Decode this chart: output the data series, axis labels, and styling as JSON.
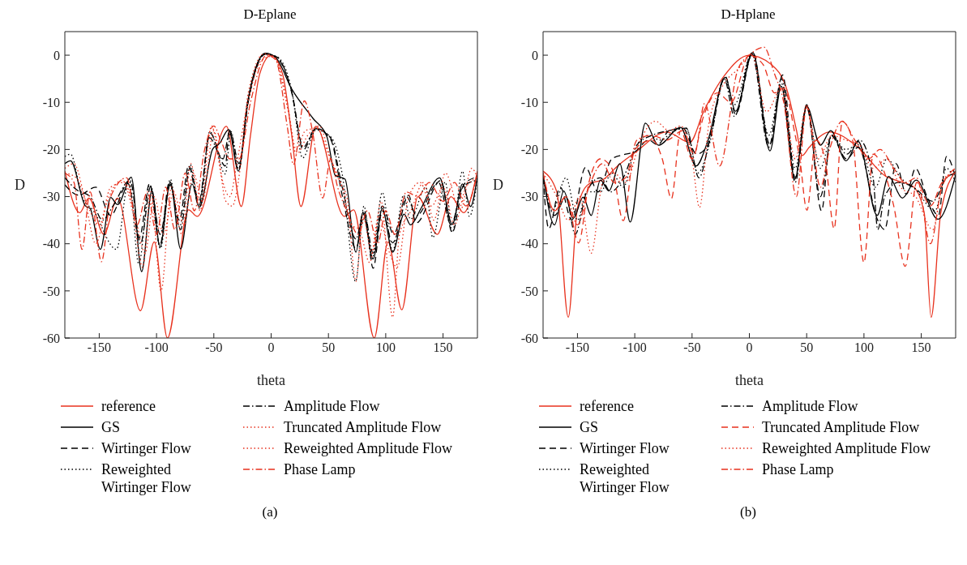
{
  "chart_data": [
    {
      "type": "line",
      "title": "D-Eplane",
      "xlabel": "theta",
      "ylabel": "D",
      "xlim": [
        -180,
        180
      ],
      "xticks": [
        -150,
        -100,
        -50,
        0,
        50,
        100,
        150
      ],
      "ylim": [
        -60,
        5
      ],
      "yticks": [
        -60,
        -50,
        -40,
        -30,
        -20,
        -10,
        0
      ],
      "legend": "bottom",
      "annotations": [
        "(a)"
      ],
      "series": [
        {
          "name": "reference",
          "color": "#e8321e",
          "line_style": "solid",
          "x": [
            -180,
            -167,
            -159,
            -146,
            -134,
            -114,
            -102,
            -90.5,
            -72,
            -64.5,
            -39,
            -26,
            -18,
            -10,
            0,
            10,
            18,
            26,
            39,
            64,
            72,
            90,
            102,
            114,
            128,
            145,
            157,
            168,
            180
          ],
          "values": [
            -24.6,
            -33.4,
            -30.3,
            -38,
            -30.3,
            -54.2,
            -39.6,
            -60,
            -32.8,
            -34.2,
            -15.1,
            -32.1,
            -17,
            -4,
            0,
            -4,
            -17,
            -32.1,
            -15.1,
            -34.2,
            -32.8,
            -60,
            -39.6,
            -54,
            -30,
            -38,
            -30,
            -33.4,
            -24.6
          ]
        },
        {
          "name": "GS",
          "color": "#000000",
          "line_style": "solid",
          "x": [
            -180,
            -175,
            -162,
            -158,
            -149,
            -140,
            -134,
            -122,
            -113,
            -104,
            -97,
            -88,
            -79,
            -69,
            -62.5,
            -51,
            -45,
            -37,
            -28.5,
            -21,
            -5,
            4,
            18,
            36.5,
            48.7,
            56,
            64.5,
            74,
            80,
            89,
            97,
            106,
            116,
            121.6,
            131,
            147,
            158,
            167,
            174,
            180
          ],
          "values": [
            -23,
            -22.4,
            -32,
            -32.5,
            -41.2,
            -30.2,
            -31.7,
            -25.9,
            -45.9,
            -28.7,
            -40.7,
            -26.9,
            -41.1,
            -27.3,
            -32.2,
            -19.9,
            -18.7,
            -15.8,
            -24.6,
            -10.6,
            0.4,
            -0.5,
            -7.2,
            -13.4,
            -17.3,
            -25.5,
            -26.3,
            -41.8,
            -33.4,
            -43.2,
            -32.5,
            -41.8,
            -33.7,
            -36,
            -32.4,
            -26,
            -35.9,
            -27.3,
            -32.1,
            -25.5
          ]
        },
        {
          "name": "Wirtinger Flow",
          "color": "#000000",
          "line_style": "dashed",
          "x": [
            -180,
            -168,
            -153,
            -140,
            -125,
            -115,
            -106,
            -97,
            -89,
            -80,
            -72,
            -63,
            -53.5,
            -40,
            -36.5,
            -28.5,
            -20,
            -5,
            5,
            18,
            28,
            39,
            52,
            62,
            74,
            81.5,
            89,
            97,
            106,
            120,
            126.5,
            148,
            158,
            168,
            180
          ],
          "values": [
            -27.5,
            -29.7,
            -28,
            -34,
            -27.2,
            -38.7,
            -27.2,
            -40.4,
            -27,
            -35,
            -23.4,
            -32,
            -16.5,
            -23.5,
            -15.9,
            -24.4,
            -9.5,
            0.3,
            -0.5,
            -8,
            -20.1,
            -15.6,
            -17.9,
            -29.7,
            -41,
            -33.6,
            -45.2,
            -33,
            -39.8,
            -29.7,
            -35.6,
            -26.6,
            -37.6,
            -27.5,
            -25.8
          ]
        },
        {
          "name": "Reweighted Wirtinger Flow",
          "color": "#000000",
          "line_style": "dotted",
          "x": [
            -180,
            -175,
            -165,
            -155,
            -135,
            -124,
            -115.5,
            -106,
            -96.6,
            -88,
            -80,
            -70.6,
            -62.5,
            -53.5,
            -40,
            -35,
            -28.5,
            -20,
            -5,
            5,
            18,
            27.5,
            39,
            52,
            62,
            73.7,
            81,
            88,
            97,
            106,
            115.6,
            121.6,
            135,
            141,
            152,
            158,
            167,
            173,
            180
          ],
          "values": [
            -21.5,
            -21,
            -30,
            -33,
            -41.2,
            -26.3,
            -44.3,
            -27.5,
            -41,
            -26.3,
            -36.5,
            -23.2,
            -32.5,
            -16.2,
            -25.2,
            -16.2,
            -24.1,
            -9.8,
            0.2,
            -0.3,
            -7.5,
            -21.8,
            -15.9,
            -17.3,
            -25.2,
            -48,
            -32,
            -43.2,
            -29.1,
            -41.5,
            -29.7,
            -34.8,
            -28,
            -38.7,
            -26.9,
            -37.6,
            -24.6,
            -34.2,
            -26.1
          ]
        },
        {
          "name": "Amplitude Flow",
          "color": "#000000",
          "line_style": "dashdot",
          "x": [
            -180,
            -170,
            -158,
            -147,
            -138,
            -123,
            -114,
            -105,
            -97,
            -88,
            -79,
            -71,
            -63,
            -54,
            -42,
            -36,
            -28,
            -20,
            -5,
            5,
            18,
            28,
            39,
            52,
            62,
            74,
            81,
            89,
            97,
            107,
            118,
            127,
            146,
            157,
            167,
            180
          ],
          "values": [
            -26,
            -28.5,
            -30,
            -35,
            -32,
            -26.5,
            -40,
            -27.8,
            -38,
            -27.5,
            -37,
            -24,
            -31,
            -17.5,
            -22,
            -16,
            -23,
            -10,
            0.2,
            -0.4,
            -7.8,
            -19.5,
            -15.5,
            -17.6,
            -28,
            -39,
            -33,
            -42,
            -32,
            -38,
            -30,
            -34,
            -27,
            -36,
            -28,
            -26.5
          ]
        },
        {
          "name": "Truncated Amplitude Flow",
          "color": "#e8321e",
          "line_style": "dotted",
          "x": [
            -180,
            -172,
            -163,
            -153,
            -143,
            -130,
            -121,
            -112,
            -105,
            -96,
            -87,
            -78,
            -70,
            -62,
            -52,
            -44,
            -40,
            -34,
            -27,
            -20,
            -6,
            3,
            15,
            22,
            30,
            40,
            50,
            60,
            66,
            74,
            80,
            88,
            96,
            106,
            112,
            122,
            133,
            142,
            152,
            165,
            175,
            180
          ],
          "values": [
            -24,
            -23,
            -30,
            -40,
            -31,
            -26.5,
            -33,
            -45,
            -29,
            -50,
            -28,
            -38,
            -23,
            -33,
            -15,
            -25,
            -30.8,
            -32,
            -24,
            -8,
            0.3,
            -0.5,
            -12,
            -20,
            -16,
            -15.5,
            -21,
            -27,
            -30,
            -48,
            -34,
            -42,
            -31,
            -55.6,
            -38,
            -33,
            -27,
            -35,
            -25,
            -33,
            -24,
            -26
          ]
        },
        {
          "name": "Reweighted Amplitude Flow",
          "color": "#e8321e",
          "line_style": "dotted",
          "x": [
            -180,
            -170,
            -160,
            -150,
            -140,
            -128,
            -118,
            -110,
            -102,
            -94,
            -85,
            -76,
            -68,
            -60,
            -50,
            -42,
            -36,
            -30,
            -22,
            -8,
            2,
            14,
            22,
            32,
            42,
            52,
            62,
            70,
            77,
            86,
            94,
            102,
            110,
            120,
            130,
            140,
            150,
            160,
            170,
            180
          ],
          "values": [
            -25,
            -26,
            -32,
            -36,
            -28,
            -27,
            -35,
            -42,
            -30,
            -38,
            -29,
            -36,
            -25,
            -31,
            -16,
            -27,
            -30,
            -23,
            -12,
            -1,
            -0.2,
            -10,
            -21,
            -17,
            -15,
            -22,
            -28,
            -36,
            -37,
            -44,
            -34,
            -41,
            -45,
            -30,
            -27,
            -32,
            -28,
            -36,
            -28,
            -26
          ]
        },
        {
          "name": "Phase Lamp",
          "color": "#e8321e",
          "line_style": "dashdot",
          "x": [
            -180,
            -172,
            -165,
            -158,
            -148,
            -140,
            -126,
            -117,
            -108,
            -100,
            -92,
            -84,
            -75,
            -67,
            -58,
            -50,
            -44,
            -36,
            -28,
            -18,
            -4,
            4,
            14,
            19.5,
            29,
            36,
            45,
            52,
            58,
            66,
            76,
            84,
            93,
            100,
            108,
            118,
            128,
            138,
            150,
            160,
            170,
            180
          ],
          "values": [
            -25,
            -27,
            -41.2,
            -29,
            -43.8,
            -30,
            -26,
            -36,
            -29,
            -38,
            -28,
            -37,
            -25,
            -33,
            -20,
            -15,
            -18,
            -22,
            -22,
            -10,
            0,
            -1,
            -15,
            -23.2,
            -9.7,
            -16,
            -30.3,
            -22,
            -28,
            -33,
            -38,
            -33,
            -40,
            -33,
            -38,
            -29,
            -30,
            -27,
            -31,
            -27,
            -32,
            -25
          ]
        }
      ]
    },
    {
      "type": "line",
      "title": "D-Hplane",
      "xlabel": "theta",
      "ylabel": "D",
      "xlim": [
        -180,
        180
      ],
      "xticks": [
        -150,
        -100,
        -50,
        0,
        50,
        100,
        150
      ],
      "ylim": [
        -60,
        5
      ],
      "yticks": [
        -60,
        -50,
        -40,
        -30,
        -20,
        -10,
        0
      ],
      "legend": "bottom",
      "annotations": [
        "(b)"
      ],
      "series": [
        {
          "name": "reference",
          "color": "#e8321e",
          "line_style": "solid",
          "x": [
            -180,
            -168,
            -158,
            -150,
            -140.5,
            -127,
            -115,
            -100,
            -72,
            -52,
            -40,
            -22,
            0,
            18.7,
            33,
            41,
            46,
            52,
            70,
            95,
            119,
            130,
            143,
            152.6,
            158.6,
            167,
            180
          ],
          "values": [
            -24.6,
            -29,
            -55.6,
            -32.4,
            -27.4,
            -26.3,
            -23.5,
            -20.7,
            -16.3,
            -18.5,
            -12,
            -4.4,
            0,
            -1.9,
            -7.5,
            -15.8,
            -21.3,
            -19.6,
            -16.3,
            -19.6,
            -25.7,
            -26.7,
            -27.9,
            -33.5,
            -55.6,
            -33.5,
            -24.6
          ]
        },
        {
          "name": "GS",
          "color": "#000000",
          "line_style": "solid",
          "x": [
            -180,
            -170,
            -162,
            -153.6,
            -145,
            -138,
            -130,
            -122.5,
            -113,
            -104,
            -90.7,
            -79.4,
            -60,
            -46.6,
            -36,
            -21,
            -12,
            3,
            18,
            27.8,
            39.7,
            50,
            62,
            71,
            84.4,
            95,
            111.5,
            121.5,
            133.5,
            145.5,
            164.6,
            180
          ],
          "values": [
            -25.2,
            -36,
            -28.8,
            -34.6,
            -30.1,
            -34,
            -26.5,
            -28.8,
            -23,
            -35.4,
            -14.4,
            -19.1,
            -15.3,
            -23.5,
            -18,
            -4.7,
            -11.9,
            0.6,
            -20.3,
            -6.6,
            -26.3,
            -10.8,
            -19.1,
            -16,
            -22.4,
            -18.3,
            -34,
            -25.7,
            -30.3,
            -26.5,
            -34.8,
            -25.4
          ]
        },
        {
          "name": "Wirtinger Flow",
          "color": "#000000",
          "line_style": "dashed",
          "x": [
            -180,
            -175,
            -165,
            -155,
            -143,
            -132,
            -120,
            -108,
            -100,
            -88,
            -80,
            -70,
            -58,
            -46,
            -36,
            -21,
            -12,
            3,
            18,
            29,
            40,
            50,
            63,
            71,
            85,
            95,
            112,
            118,
            128,
            137,
            145,
            155,
            165,
            172,
            180
          ],
          "values": [
            -26,
            -36.8,
            -28,
            -35,
            -23.8,
            -29,
            -22,
            -21,
            -20.5,
            -18,
            -19,
            -16,
            -15.5,
            -21,
            -19,
            -4.5,
            -12.5,
            0.5,
            -19,
            -4.2,
            -26,
            -10.5,
            -33,
            -17,
            -22,
            -19.5,
            -35,
            -37,
            -23,
            -29.5,
            -24,
            -30,
            -34,
            -21.5,
            -26
          ]
        },
        {
          "name": "Reweighted Wirtinger Flow",
          "color": "#000000",
          "line_style": "dotted",
          "x": [
            -180,
            -172,
            -160,
            -150,
            -142,
            -130,
            -120,
            -110,
            -100,
            -88,
            -78,
            -65,
            -55,
            -45,
            -35,
            -22,
            -13,
            2,
            17,
            28,
            40,
            50,
            62,
            72,
            84,
            96,
            110,
            120,
            132,
            145,
            162,
            172,
            180
          ],
          "values": [
            -26,
            -33,
            -26,
            -35,
            -29,
            -29,
            -25,
            -28,
            -20,
            -17,
            -18,
            -16,
            -15.5,
            -25,
            -19,
            -5,
            -10.5,
            0.3,
            -17,
            -6,
            -24,
            -11,
            -24,
            -17,
            -20,
            -19,
            -28,
            -22,
            -26,
            -28.5,
            -33,
            -24,
            -27
          ]
        },
        {
          "name": "Amplitude Flow",
          "color": "#000000",
          "line_style": "dashdot",
          "x": [
            -180,
            -170,
            -160,
            -152,
            -142,
            -130,
            -121,
            -110,
            -98,
            -85,
            -70,
            -55,
            -44,
            -34,
            -22,
            -13,
            2,
            17,
            28,
            40,
            50,
            62,
            72,
            85,
            96,
            108,
            112,
            118,
            130,
            143,
            160,
            172,
            180
          ],
          "values": [
            -26,
            -34,
            -30,
            -38,
            -29,
            -26,
            -29,
            -26,
            -19,
            -17,
            -16,
            -15.5,
            -26,
            -17,
            -5,
            -13,
            0.4,
            -19.5,
            -5,
            -27,
            -11,
            -30,
            -17,
            -21,
            -18,
            -26,
            -37,
            -30,
            -27,
            -28,
            -31,
            -26,
            -25
          ]
        },
        {
          "name": "Truncated Amplitude Flow",
          "color": "#e8321e",
          "line_style": "dashed",
          "x": [
            -180,
            -170,
            -160,
            -149,
            -140,
            -130,
            -120,
            -110,
            -100,
            -85,
            -76,
            -68,
            -60,
            -50,
            -40,
            -28,
            -16,
            0,
            12,
            22,
            30,
            40,
            44,
            50.2,
            58,
            66,
            74,
            81,
            90,
            100,
            108,
            118,
            126,
            136,
            146,
            158,
            168,
            180
          ],
          "values": [
            -25,
            -33,
            -30,
            -39.8,
            -27,
            -22,
            -24,
            -35.1,
            -20,
            -18,
            -22,
            -30.4,
            -16,
            -22,
            -13,
            -8,
            -10,
            0,
            -2,
            -8,
            -7,
            -17,
            -22,
            -32.9,
            -18,
            -22,
            -36.8,
            -14.1,
            -18,
            -44,
            -21,
            -25,
            -32,
            -44.8,
            -27,
            -32,
            -27,
            -25
          ]
        },
        {
          "name": "Reweighted Amplitude Flow",
          "color": "#e8321e",
          "line_style": "dotted",
          "x": [
            -180,
            -168,
            -158,
            -148,
            -138,
            -128,
            -118,
            -108,
            -95,
            -82,
            -70,
            -60,
            -50,
            -43.5,
            -35,
            -22,
            -10,
            2,
            15,
            28,
            40,
            50,
            60,
            72,
            84,
            96,
            108,
            120,
            132,
            145,
            160,
            170,
            180
          ],
          "values": [
            -25,
            -30,
            -35,
            -30,
            -42,
            -27,
            -25,
            -27,
            -18,
            -14,
            -16,
            -15,
            -22,
            -32.3,
            -14,
            -6,
            -3,
            0.2,
            -12,
            -7,
            -22,
            -10.5,
            -22,
            -17,
            -18,
            -19,
            -24,
            -22,
            -28,
            -30,
            -37,
            -26,
            -25
          ]
        },
        {
          "name": "Phase Lamp",
          "color": "#e8321e",
          "line_style": "dashdot",
          "x": [
            -180,
            -170,
            -160,
            -150,
            -140,
            -128,
            -118,
            -108,
            -98,
            -85,
            -72,
            -58,
            -48,
            -39,
            -26,
            -10,
            0,
            12.7,
            22,
            30,
            41,
            50,
            62,
            70,
            81,
            92,
            104,
            114,
            126,
            136,
            146,
            158,
            168,
            180
          ],
          "values": [
            -25,
            -33,
            -30,
            -36,
            -28,
            -23,
            -27,
            -26,
            -18,
            -17,
            -18,
            -16,
            -21,
            -10.2,
            -23.5,
            -3,
            0,
            1.7,
            -4,
            -10,
            -30,
            -11,
            -28,
            -20,
            -14,
            -18,
            -22,
            -20,
            -24,
            -27,
            -26,
            -40,
            -28,
            -24
          ]
        }
      ]
    }
  ]
}
